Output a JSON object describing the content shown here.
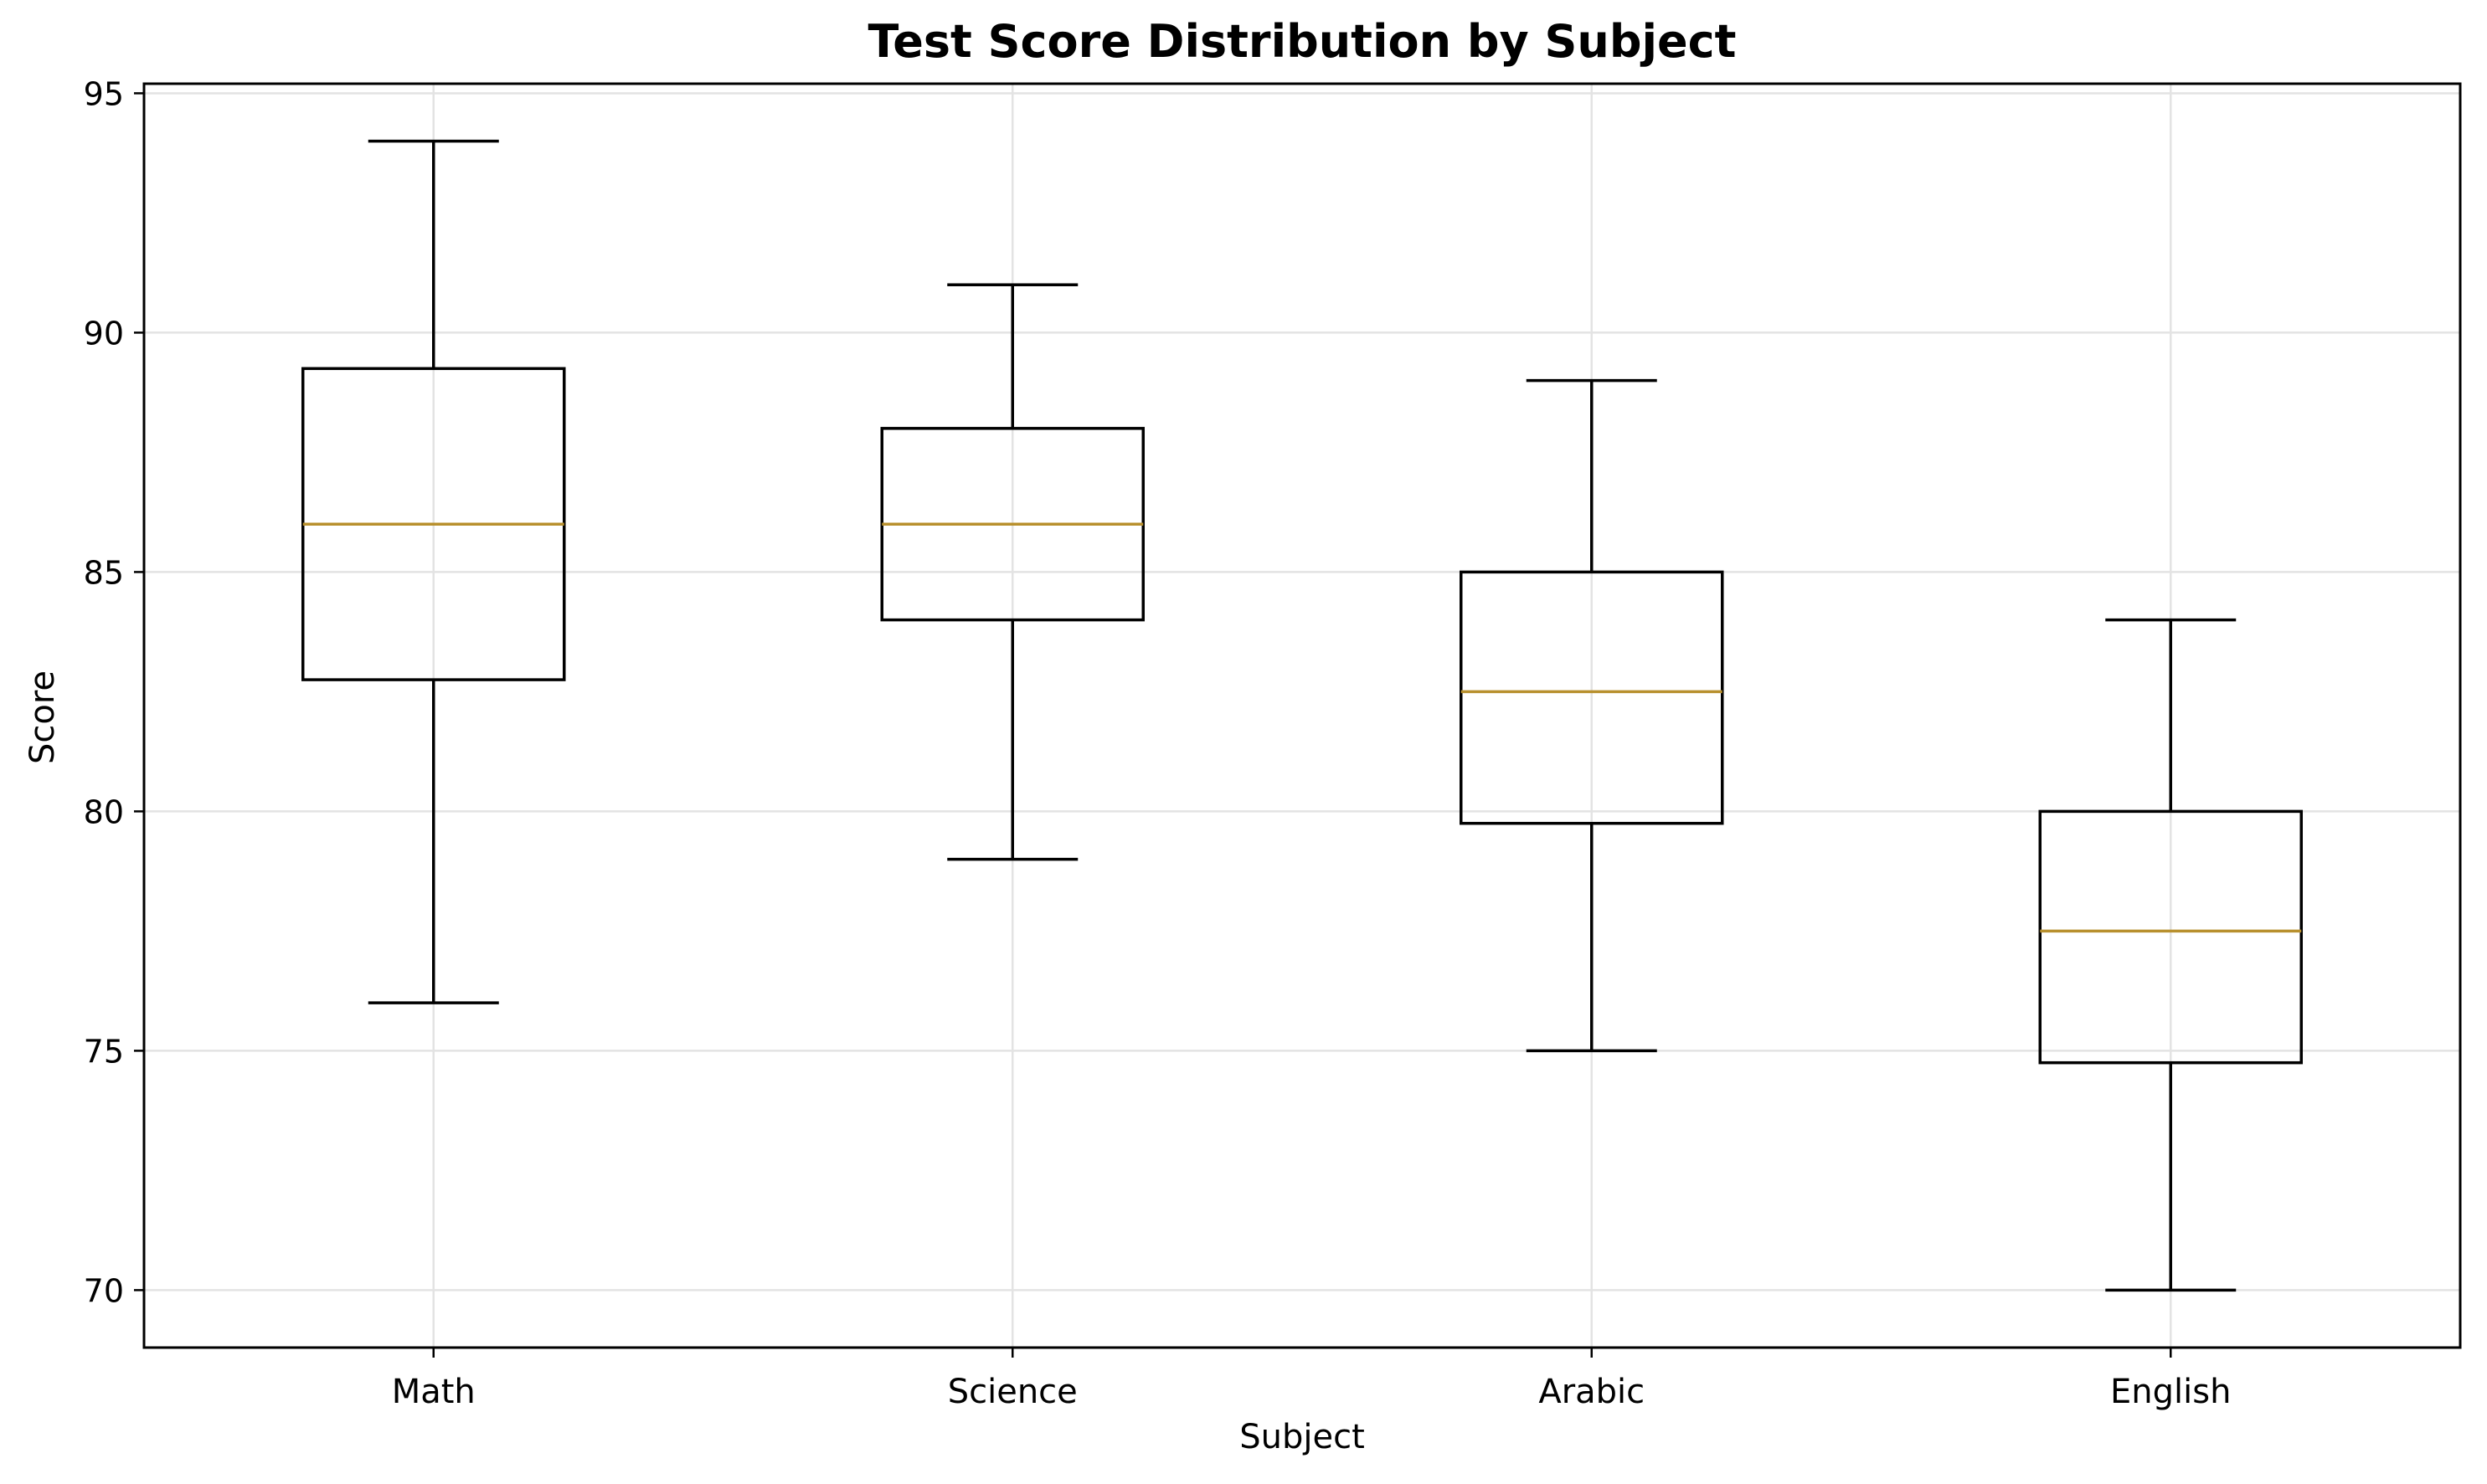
{
  "chart_data": {
    "type": "box",
    "title": "Test Score Distribution by Subject",
    "xlabel": "Subject",
    "ylabel": "Score",
    "categories": [
      "Math",
      "Science",
      "Arabic",
      "English"
    ],
    "boxes": [
      {
        "category": "Math",
        "whislo": 76,
        "q1": 82.75,
        "median": 86,
        "q3": 89.25,
        "whishi": 94
      },
      {
        "category": "Science",
        "whislo": 79,
        "q1": 84,
        "median": 86,
        "q3": 88,
        "whishi": 91
      },
      {
        "category": "Arabic",
        "whislo": 75,
        "q1": 79.75,
        "median": 82.5,
        "q3": 85,
        "whishi": 89
      },
      {
        "category": "English",
        "whislo": 70,
        "q1": 74.75,
        "median": 77.5,
        "q3": 80,
        "whishi": 84
      }
    ],
    "ylim": [
      68.8,
      95.2
    ],
    "yticks": [
      70,
      75,
      80,
      85,
      90,
      95
    ],
    "grid": true,
    "colors": {
      "box": "#000000",
      "median": "#b8902e",
      "grid": "#e3e3e3",
      "axes": "#000000"
    }
  }
}
